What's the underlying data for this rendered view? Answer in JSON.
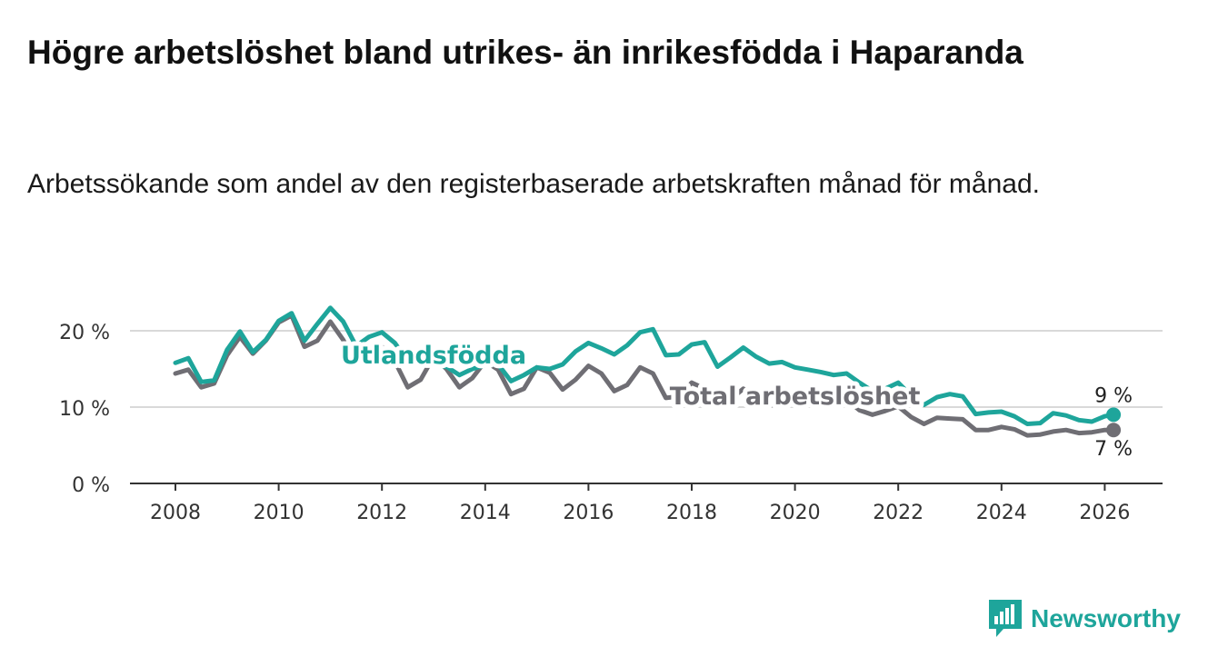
{
  "title": "Högre arbetslöshet bland utrikes- än inrikesfödda i Haparanda",
  "subtitle": "Arbetssökande som andel av den registerbaserade arbetskraften månad för månad.",
  "brand": {
    "name": "Newsworthy",
    "color": "#1ea59b"
  },
  "chart_data": {
    "type": "line",
    "title": "Högre arbetslöshet bland utrikes- än inrikesfödda i Haparanda",
    "xlabel": "",
    "ylabel": "",
    "xlim": [
      2007.4,
      2027.0
    ],
    "ylim": [
      0,
      20
    ],
    "grid": true,
    "x_ticks": [
      2008,
      2010,
      2012,
      2014,
      2016,
      2018,
      2020,
      2022,
      2024,
      2026
    ],
    "x_tick_labels": [
      "2008",
      "2010",
      "2012",
      "2014",
      "2016",
      "2018",
      "2020",
      "2022",
      "2024",
      "2026"
    ],
    "y_ticks": [
      0,
      10,
      20
    ],
    "y_tick_labels": [
      "0 %",
      "10 %",
      "20 %"
    ],
    "series": [
      {
        "name": "Utlandsfödda",
        "color": "#1ea59b",
        "points": [
          [
            2008.0,
            15.8
          ],
          [
            2008.25,
            16.4
          ],
          [
            2008.5,
            13.3
          ],
          [
            2008.75,
            13.5
          ],
          [
            2009.0,
            17.5
          ],
          [
            2009.25,
            19.9
          ],
          [
            2009.5,
            17.2
          ],
          [
            2009.75,
            18.8
          ],
          [
            2010.0,
            21.3
          ],
          [
            2010.25,
            22.3
          ],
          [
            2010.5,
            18.7
          ],
          [
            2010.75,
            20.9
          ],
          [
            2011.0,
            23.0
          ],
          [
            2011.25,
            21.2
          ],
          [
            2011.5,
            18.0
          ],
          [
            2011.75,
            19.2
          ],
          [
            2012.0,
            19.8
          ],
          [
            2012.25,
            18.4
          ],
          [
            2012.5,
            16.0
          ],
          [
            2012.75,
            16.0
          ],
          [
            2013.0,
            15.5
          ],
          [
            2013.25,
            15.3
          ],
          [
            2013.5,
            14.2
          ],
          [
            2013.75,
            15.0
          ],
          [
            2014.0,
            15.5
          ],
          [
            2014.25,
            15.6
          ],
          [
            2014.5,
            13.4
          ],
          [
            2014.75,
            14.2
          ],
          [
            2015.0,
            15.2
          ],
          [
            2015.25,
            15.0
          ],
          [
            2015.5,
            15.6
          ],
          [
            2015.75,
            17.3
          ],
          [
            2016.0,
            18.4
          ],
          [
            2016.25,
            17.7
          ],
          [
            2016.5,
            16.9
          ],
          [
            2016.75,
            18.1
          ],
          [
            2017.0,
            19.8
          ],
          [
            2017.25,
            20.2
          ],
          [
            2017.5,
            16.8
          ],
          [
            2017.75,
            16.9
          ],
          [
            2018.0,
            18.2
          ],
          [
            2018.25,
            18.5
          ],
          [
            2018.5,
            15.3
          ],
          [
            2018.75,
            16.5
          ],
          [
            2019.0,
            17.8
          ],
          [
            2019.25,
            16.6
          ],
          [
            2019.5,
            15.7
          ],
          [
            2019.75,
            15.9
          ],
          [
            2020.0,
            15.2
          ],
          [
            2020.25,
            14.9
          ],
          [
            2020.5,
            14.6
          ],
          [
            2020.75,
            14.2
          ],
          [
            2021.0,
            14.4
          ],
          [
            2021.25,
            13.2
          ],
          [
            2021.5,
            12.1
          ],
          [
            2021.75,
            12.4
          ],
          [
            2022.0,
            13.2
          ],
          [
            2022.25,
            11.5
          ],
          [
            2022.5,
            10.3
          ],
          [
            2022.75,
            11.3
          ],
          [
            2023.0,
            11.7
          ],
          [
            2023.25,
            11.4
          ],
          [
            2023.5,
            9.1
          ],
          [
            2023.75,
            9.3
          ],
          [
            2024.0,
            9.4
          ],
          [
            2024.25,
            8.8
          ],
          [
            2024.5,
            7.8
          ],
          [
            2024.75,
            7.9
          ],
          [
            2025.0,
            9.2
          ],
          [
            2025.25,
            8.9
          ],
          [
            2025.5,
            8.3
          ],
          [
            2025.75,
            8.1
          ],
          [
            2026.0,
            8.8
          ],
          [
            2026.17,
            9.0
          ]
        ]
      },
      {
        "name": "Total arbetslöshet",
        "color": "#6f6e74",
        "points": [
          [
            2008.0,
            14.4
          ],
          [
            2008.25,
            14.9
          ],
          [
            2008.5,
            12.6
          ],
          [
            2008.75,
            13.1
          ],
          [
            2009.0,
            16.8
          ],
          [
            2009.25,
            19.2
          ],
          [
            2009.5,
            17.0
          ],
          [
            2009.75,
            18.7
          ],
          [
            2010.0,
            21.1
          ],
          [
            2010.25,
            22.0
          ],
          [
            2010.5,
            17.9
          ],
          [
            2010.75,
            18.7
          ],
          [
            2011.0,
            21.2
          ],
          [
            2011.25,
            18.8
          ],
          [
            2011.5,
            15.8
          ],
          [
            2011.75,
            16.3
          ],
          [
            2012.0,
            17.9
          ],
          [
            2012.25,
            16.0
          ],
          [
            2012.5,
            12.6
          ],
          [
            2012.75,
            13.6
          ],
          [
            2013.0,
            16.6
          ],
          [
            2013.25,
            15.0
          ],
          [
            2013.5,
            12.6
          ],
          [
            2013.75,
            13.8
          ],
          [
            2014.0,
            16.0
          ],
          [
            2014.25,
            14.9
          ],
          [
            2014.5,
            11.7
          ],
          [
            2014.75,
            12.4
          ],
          [
            2015.0,
            15.2
          ],
          [
            2015.25,
            14.5
          ],
          [
            2015.5,
            12.3
          ],
          [
            2015.75,
            13.6
          ],
          [
            2016.0,
            15.4
          ],
          [
            2016.25,
            14.4
          ],
          [
            2016.5,
            12.1
          ],
          [
            2016.75,
            12.9
          ],
          [
            2017.0,
            15.2
          ],
          [
            2017.25,
            14.4
          ],
          [
            2017.5,
            11.2
          ],
          [
            2017.75,
            11.4
          ],
          [
            2018.0,
            13.2
          ],
          [
            2018.25,
            12.4
          ],
          [
            2018.5,
            10.6
          ],
          [
            2018.75,
            11.0
          ],
          [
            2019.0,
            12.4
          ],
          [
            2019.25,
            11.4
          ],
          [
            2019.5,
            10.2
          ],
          [
            2019.75,
            10.5
          ],
          [
            2020.0,
            11.6
          ],
          [
            2020.25,
            11.2
          ],
          [
            2020.5,
            10.3
          ],
          [
            2020.75,
            10.6
          ],
          [
            2021.0,
            11.0
          ],
          [
            2021.25,
            9.6
          ],
          [
            2021.5,
            9.0
          ],
          [
            2021.75,
            9.5
          ],
          [
            2022.0,
            10.1
          ],
          [
            2022.25,
            8.7
          ],
          [
            2022.5,
            7.8
          ],
          [
            2022.75,
            8.6
          ],
          [
            2023.0,
            8.5
          ],
          [
            2023.25,
            8.4
          ],
          [
            2023.5,
            7.0
          ],
          [
            2023.75,
            7.0
          ],
          [
            2024.0,
            7.4
          ],
          [
            2024.25,
            7.1
          ],
          [
            2024.5,
            6.3
          ],
          [
            2024.75,
            6.4
          ],
          [
            2025.0,
            6.8
          ],
          [
            2025.25,
            7.0
          ],
          [
            2025.5,
            6.6
          ],
          [
            2025.75,
            6.7
          ],
          [
            2026.0,
            7.0
          ],
          [
            2026.17,
            7.0
          ]
        ]
      }
    ],
    "annotations": [
      {
        "text": "Utlandsfödda",
        "series": "Utlandsfödda",
        "x": 2013.0,
        "y": 16.8
      },
      {
        "text": "Total arbetslöshet",
        "series": "Total arbetslöshet",
        "x": 2020.0,
        "y": 11.4
      }
    ],
    "end_labels": [
      {
        "text": "9 %",
        "series": "Utlandsfödda",
        "x": 2026.17,
        "y": 9.0,
        "position": "above"
      },
      {
        "text": "7 %",
        "series": "Total arbetslöshet",
        "x": 2026.17,
        "y": 7.0,
        "position": "below"
      }
    ]
  }
}
